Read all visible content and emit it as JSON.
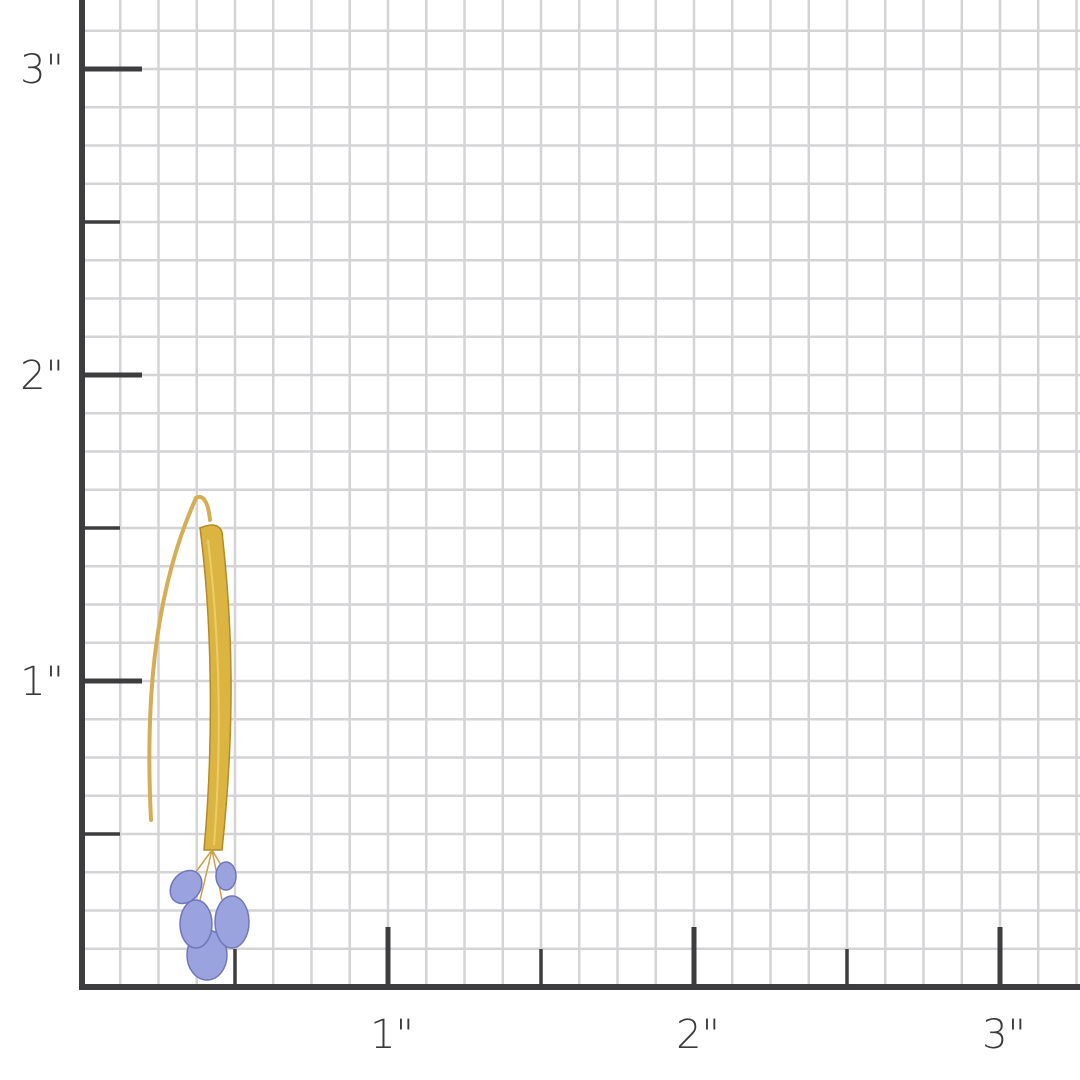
{
  "ruler": {
    "unit_mark": "\"",
    "y_labels": [
      "1\"",
      "2\"",
      "3\""
    ],
    "x_labels": [
      "1\"",
      "2\"",
      "3\""
    ],
    "grid_subdivisions_per_inch": 8,
    "axis_color": "#3d3d3f",
    "grid_color": "#d4d4d6"
  },
  "product": {
    "type": "earring",
    "metal_color": "#d9b24a",
    "stone_color": "#8e98d8"
  }
}
